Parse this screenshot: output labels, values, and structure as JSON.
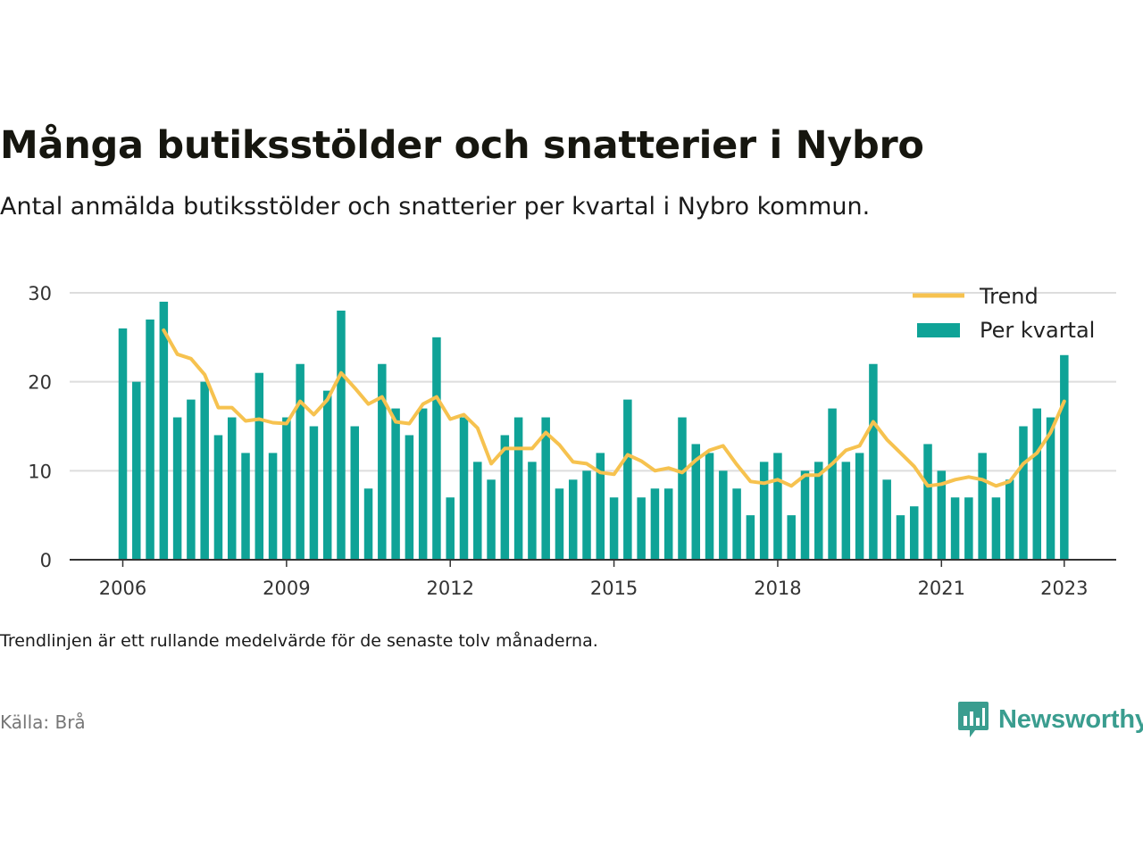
{
  "header": {
    "title": "Många butiksstölder och snatterier i Nybro",
    "subtitle": "Antal anmälda butiksstölder och snatterier per kvartal i Nybro kommun."
  },
  "footer": {
    "note": "Trendlinjen är ett rullande medelvärde för de senaste tolv månaderna.",
    "source": "Källa: Brå",
    "brand": "Newsworthy"
  },
  "chart_data": {
    "type": "bar",
    "x_unit": "quarter",
    "x_start": "2006 Q1",
    "xticks": [
      "2006",
      "2009",
      "2012",
      "2015",
      "2018",
      "2021",
      "2023"
    ],
    "yticks": [
      "0",
      "10",
      "20",
      "30"
    ],
    "ylim": [
      0,
      30
    ],
    "grid": true,
    "legend_position": "top-right",
    "colors": {
      "bars": "#0fa397",
      "trend": "#f6c24f"
    },
    "series": [
      {
        "name": "Per kvartal",
        "type": "bar",
        "values": [
          26,
          20,
          27,
          29,
          16,
          18,
          20,
          14,
          16,
          12,
          21,
          12,
          16,
          22,
          15,
          19,
          28,
          15,
          8,
          22,
          17,
          14,
          17,
          25,
          7,
          16,
          11,
          9,
          14,
          16,
          11,
          16,
          8,
          9,
          10,
          12,
          7,
          18,
          7,
          8,
          8,
          16,
          13,
          12,
          10,
          8,
          5,
          11,
          12,
          5,
          10,
          11,
          17,
          11,
          12,
          22,
          9,
          5,
          6,
          13,
          10,
          7,
          7,
          12,
          7,
          9,
          15,
          17,
          16,
          23
        ]
      },
      {
        "name": "Trend",
        "type": "line",
        "values": [
          null,
          null,
          null,
          25.8,
          23.1,
          22.6,
          20.8,
          17.1,
          17.1,
          15.6,
          15.8,
          15.4,
          15.3,
          17.8,
          16.3,
          18.0,
          21.0,
          19.3,
          17.5,
          18.3,
          15.5,
          15.3,
          17.5,
          18.3,
          15.8,
          16.3,
          14.8,
          10.8,
          12.5,
          12.5,
          12.5,
          14.3,
          12.9,
          11.0,
          10.8,
          9.8,
          9.6,
          11.8,
          11.1,
          10.0,
          10.3,
          9.8,
          11.2,
          12.3,
          12.8,
          10.7,
          8.8,
          8.6,
          9.0,
          8.3,
          9.5,
          9.5,
          10.8,
          12.3,
          12.8,
          15.5,
          13.5,
          12.0,
          10.5,
          8.3,
          8.5,
          9.0,
          9.3,
          9.0,
          8.3,
          8.8,
          10.8,
          12.0,
          14.3,
          17.8
        ]
      }
    ]
  }
}
